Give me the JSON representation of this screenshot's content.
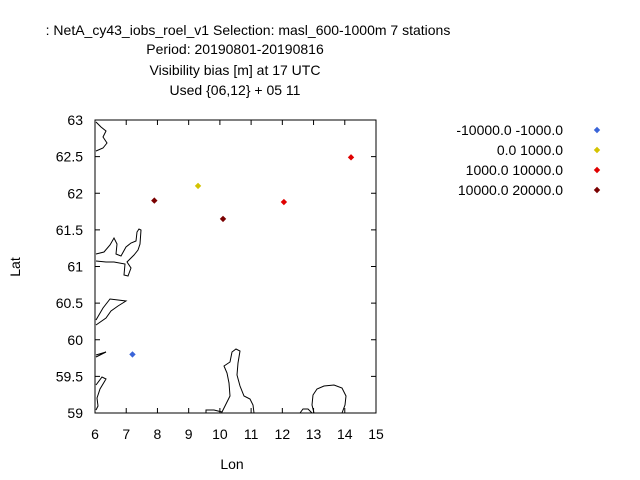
{
  "chart_data": {
    "type": "scatter",
    "title_lines": [
      ": NetA_cy43_iobs_roel_v1   Selection: masl_600-1000m      7 stations",
      "Period: 20190801-20190816",
      "Visibility bias [m] at  17 UTC",
      "Used {06,12} + 05 11"
    ],
    "xlabel": "Lon",
    "ylabel": "Lat",
    "xlim": [
      6,
      15
    ],
    "ylim": [
      59,
      63
    ],
    "xticks": [
      6,
      7,
      8,
      9,
      10,
      11,
      12,
      13,
      14,
      15
    ],
    "yticks": [
      59,
      59.5,
      60,
      60.5,
      61,
      61.5,
      62,
      62.5,
      63
    ],
    "legend_position": "right",
    "series": [
      {
        "name": "-10000.0 -1000.0",
        "color": "#3a64d8",
        "points": [
          [
            7.2,
            59.8
          ]
        ]
      },
      {
        "name": "0.0 1000.0",
        "color": "#d4c300",
        "points": [
          [
            9.3,
            62.1
          ]
        ]
      },
      {
        "name": "1000.0 10000.0",
        "color": "#e00000",
        "points": [
          [
            12.05,
            61.88
          ],
          [
            14.2,
            62.49
          ]
        ]
      },
      {
        "name": "10000.0 20000.0",
        "color": "#7a0000",
        "points": [
          [
            7.9,
            61.9
          ],
          [
            10.1,
            61.65
          ]
        ]
      }
    ]
  }
}
